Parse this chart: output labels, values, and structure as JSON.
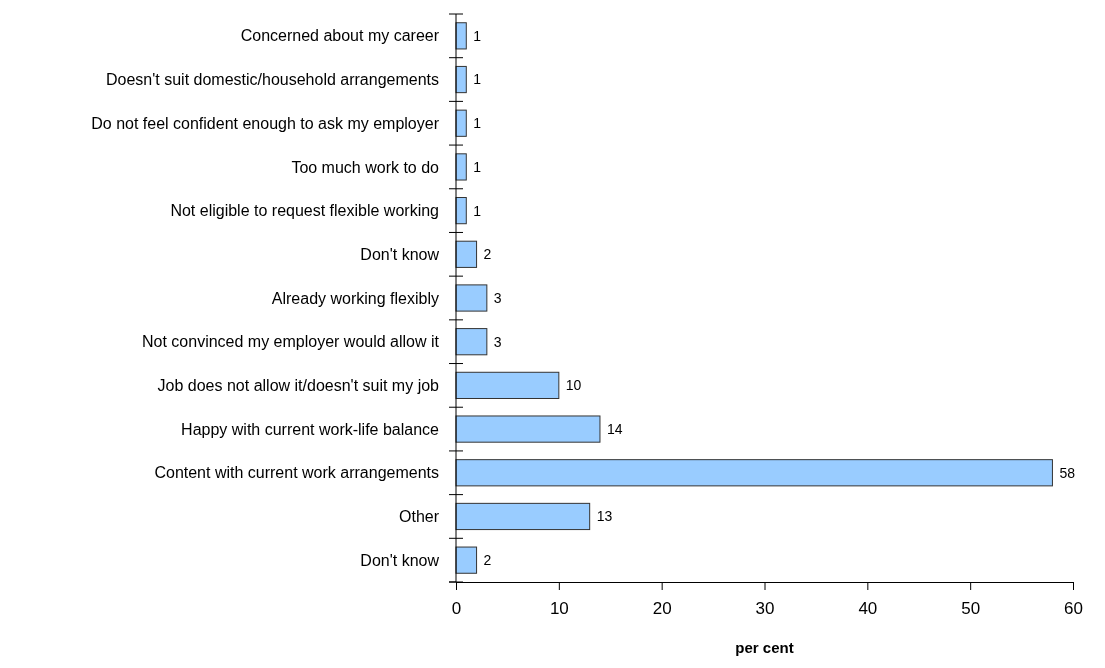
{
  "chart_data": {
    "type": "bar",
    "orientation": "horizontal",
    "categories": [
      "Concerned about my career",
      "Doesn't suit domestic/household arrangements",
      "Do not feel confident enough to ask my employer",
      "Too much work to do",
      "Not eligible to request flexible working",
      "Don't know",
      "Already working flexibly",
      "Not convinced my employer would allow it",
      "Job does not allow it/doesn't suit my job",
      "Happy with current work-life balance",
      "Content with current work arrangements",
      "Other",
      "Don't know"
    ],
    "values": [
      1,
      1,
      1,
      1,
      1,
      2,
      3,
      3,
      10,
      14,
      58,
      13,
      2
    ],
    "color": "#99ccff",
    "xlim": [
      0,
      60
    ],
    "xticks": [
      0,
      10,
      20,
      30,
      40,
      50,
      60
    ],
    "xlabel": "per cent",
    "data_labels": true,
    "grid": false
  }
}
